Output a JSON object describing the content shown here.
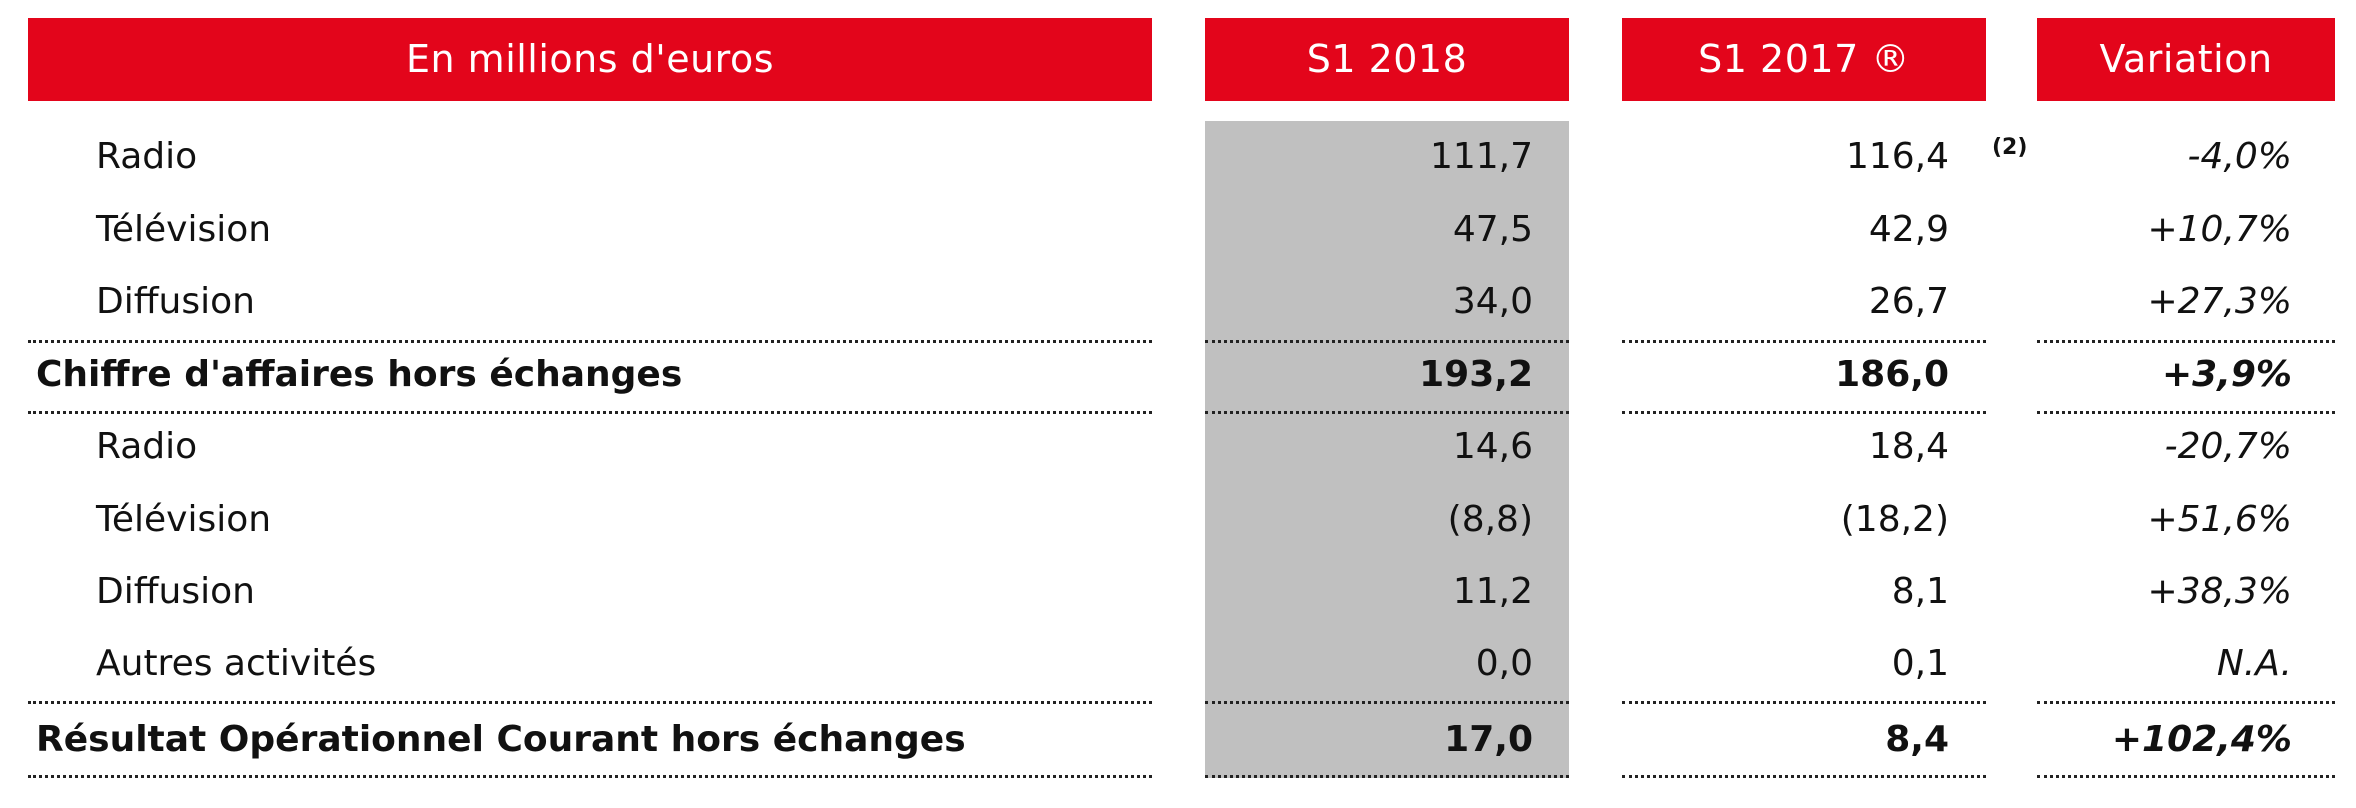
{
  "header": {
    "label_col": "En millions d'euros",
    "col1": "S1 2018",
    "col2": "S1 2017 ®",
    "col3": "Variation"
  },
  "rows": [
    {
      "label": "Radio",
      "s1_2018": "111,7",
      "s1_2017": "116,4",
      "note": "(2)",
      "variation": "-4,0%",
      "bold": false
    },
    {
      "label": "Télévision",
      "s1_2018": "47,5",
      "s1_2017": "42,9",
      "variation": "+10,7%",
      "bold": false
    },
    {
      "label": "Diffusion",
      "s1_2018": "34,0",
      "s1_2017": "26,7",
      "variation": "+27,3%",
      "bold": false
    },
    {
      "label": "Chiffre d'affaires hors échanges",
      "s1_2018": "193,2",
      "s1_2017": "186,0",
      "variation": "+3,9%",
      "bold": true
    },
    {
      "label": "Radio",
      "s1_2018": "14,6",
      "s1_2017": "18,4",
      "variation": "-20,7%",
      "bold": false
    },
    {
      "label": "Télévision",
      "s1_2018": "(8,8)",
      "s1_2017": "(18,2)",
      "variation": "+51,6%",
      "bold": false
    },
    {
      "label": "Diffusion",
      "s1_2018": "11,2",
      "s1_2017": "8,1",
      "variation": "+38,3%",
      "bold": false
    },
    {
      "label": "Autres activités",
      "s1_2018": "0,0",
      "s1_2017": "0,1",
      "variation": "N.A.",
      "bold": false
    },
    {
      "label": "Résultat Opérationnel Courant hors échanges",
      "s1_2018": "17,0",
      "s1_2017": "8,4",
      "variation": "+102,4%",
      "bold": true
    }
  ],
  "colors": {
    "header_bg": "#e3051b",
    "header_text": "#ffffff",
    "highlight_column": "#c0c0c0"
  }
}
